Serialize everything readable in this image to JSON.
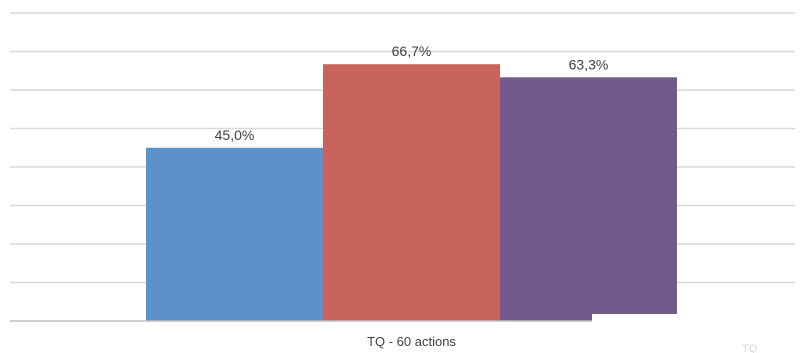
{
  "chart_data": {
    "type": "bar",
    "categories": [
      "TQ - 60 actions"
    ],
    "series": [
      {
        "values": [
          45.0
        ],
        "label": "45,0%",
        "color": "#5b93c9"
      },
      {
        "values": [
          66.7
        ],
        "label": "66,7%",
        "color": "#c9645c"
      },
      {
        "values": [
          63.3
        ],
        "label": "63,3%",
        "color": "#735a8c"
      }
    ],
    "ylim": [
      0,
      80
    ],
    "grid": true,
    "value_format": "percent"
  },
  "stray_text": "TQ"
}
